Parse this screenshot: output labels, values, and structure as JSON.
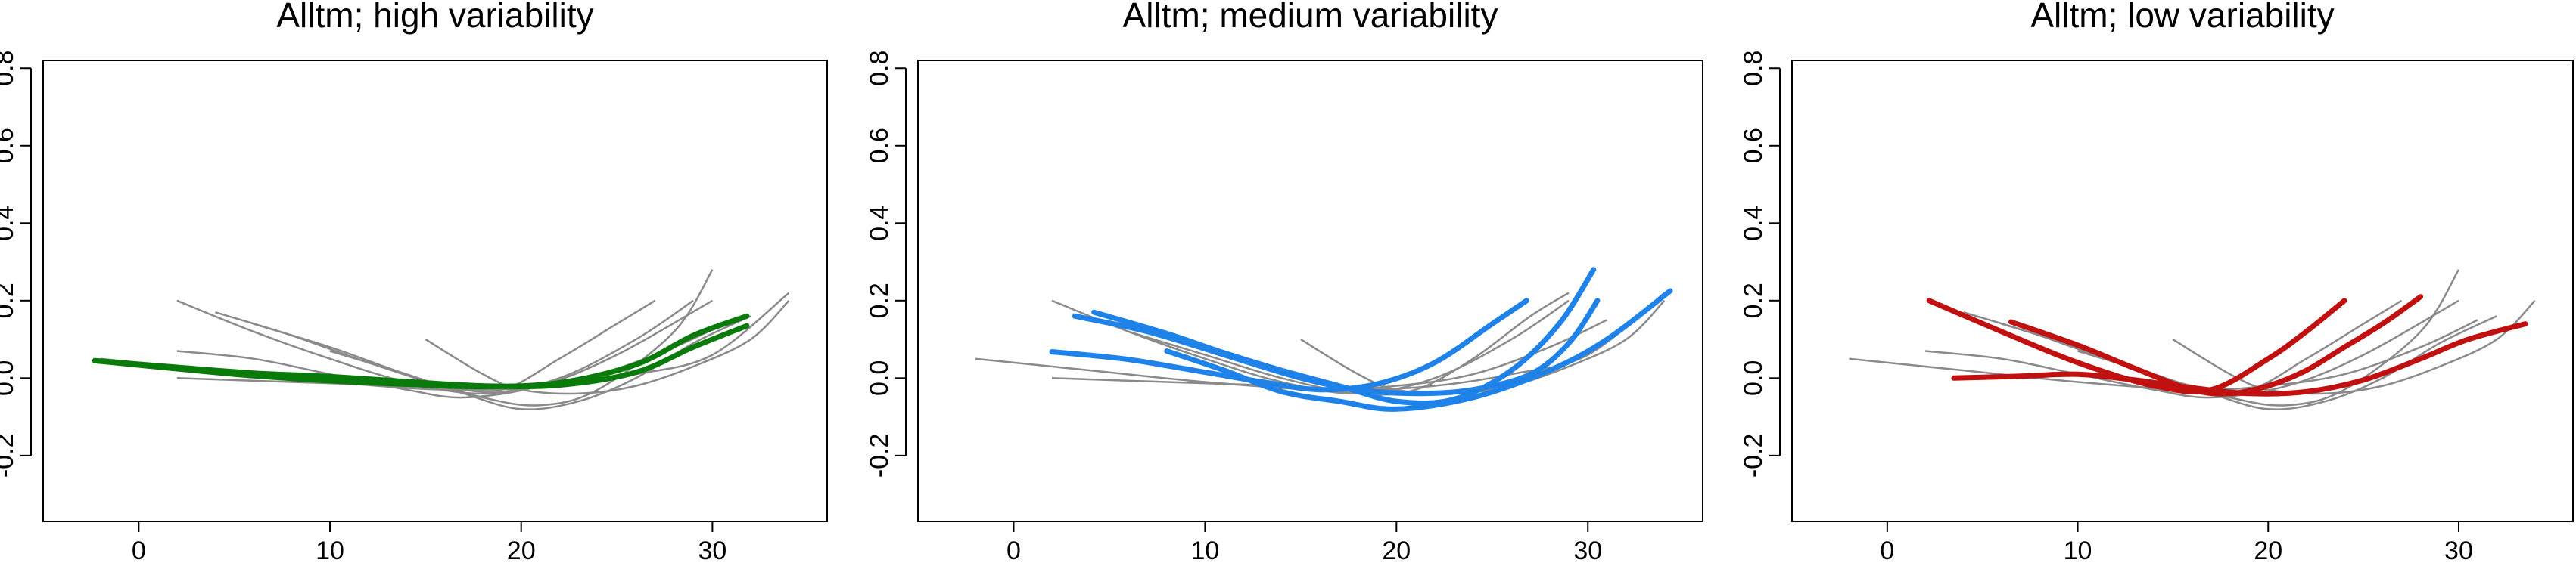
{
  "chart_data": [
    {
      "type": "line",
      "title": "Alltm; high variability",
      "xlabel": "",
      "ylabel": "",
      "xlim": [
        -5,
        36
      ],
      "ylim": [
        -0.37,
        0.82
      ],
      "xticks": [
        0,
        10,
        20,
        30
      ],
      "yticks": [
        -0.2,
        0.0,
        0.2,
        0.4,
        0.6,
        0.8
      ],
      "xtick_labels": [
        "0",
        "10",
        "20",
        "30"
      ],
      "ytick_labels": [
        "-0.2",
        "0.0",
        "0.2",
        "0.4",
        "0.6",
        "0.8"
      ],
      "highlight_color": "#0a7a0a",
      "background_color": "#8a8a8a",
      "background_series": [
        {
          "x": [
            2,
            6,
            10,
            14,
            18,
            22,
            26,
            29
          ],
          "y": [
            0.2,
            0.12,
            0.05,
            -0.01,
            -0.04,
            0.0,
            0.1,
            0.2
          ]
        },
        {
          "x": [
            4,
            8,
            12,
            16,
            19,
            22,
            25,
            27
          ],
          "y": [
            0.17,
            0.11,
            0.04,
            -0.02,
            -0.03,
            0.05,
            0.14,
            0.2
          ]
        },
        {
          "x": [
            6,
            10,
            14,
            18,
            21,
            24,
            28,
            30
          ],
          "y": [
            0.14,
            0.08,
            0.01,
            -0.05,
            -0.07,
            -0.03,
            0.12,
            0.28
          ]
        },
        {
          "x": [
            2,
            6,
            10,
            14,
            17,
            21,
            25,
            30
          ],
          "y": [
            0.07,
            0.05,
            0.01,
            -0.03,
            -0.05,
            -0.02,
            0.06,
            0.2
          ]
        },
        {
          "x": [
            10,
            14,
            17,
            20,
            23,
            26,
            29,
            32
          ],
          "y": [
            0.07,
            0.01,
            -0.04,
            -0.08,
            -0.06,
            0.0,
            0.09,
            0.16
          ]
        },
        {
          "x": [
            15,
            18,
            20,
            23,
            26,
            29,
            32,
            34
          ],
          "y": [
            0.1,
            0.01,
            -0.03,
            -0.04,
            -0.02,
            0.03,
            0.1,
            0.2
          ]
        },
        {
          "x": [
            -2,
            4,
            10,
            16,
            20,
            24,
            28,
            31
          ],
          "y": [
            0.05,
            0.02,
            -0.01,
            -0.03,
            -0.02,
            0.01,
            0.08,
            0.15
          ]
        },
        {
          "x": [
            2,
            8,
            14,
            18,
            22,
            26,
            30,
            34
          ],
          "y": [
            0.0,
            -0.01,
            -0.02,
            -0.03,
            -0.02,
            0.01,
            0.06,
            0.22
          ]
        }
      ],
      "highlight_series": [
        {
          "x": [
            -2.3,
            2,
            6,
            10,
            14,
            18,
            22,
            26,
            29,
            31.8
          ],
          "y": [
            0.045,
            0.028,
            0.013,
            0.004,
            -0.009,
            -0.02,
            -0.018,
            0.015,
            0.08,
            0.135
          ]
        },
        {
          "x": [
            -2.3,
            2,
            6,
            10,
            14,
            18,
            22,
            26,
            29,
            31.8
          ],
          "y": [
            0.045,
            0.024,
            0.006,
            -0.007,
            -0.016,
            -0.022,
            -0.012,
            0.035,
            0.11,
            0.16
          ]
        }
      ]
    },
    {
      "type": "line",
      "title": "Alltm; medium variability",
      "xlabel": "",
      "ylabel": "",
      "xlim": [
        -5,
        36
      ],
      "ylim": [
        -0.37,
        0.82
      ],
      "xticks": [
        0,
        10,
        20,
        30
      ],
      "yticks": [
        -0.2,
        0.0,
        0.2,
        0.4,
        0.6,
        0.8
      ],
      "xtick_labels": [
        "0",
        "10",
        "20",
        "30"
      ],
      "ytick_labels": [
        "-0.2",
        "0.0",
        "0.2",
        "0.4",
        "0.6",
        "0.8"
      ],
      "highlight_color": "#1f82e8",
      "background_color": "#8a8a8a",
      "background_series": [
        {
          "x": [
            2,
            6,
            10,
            14,
            18,
            22,
            26,
            29
          ],
          "y": [
            0.2,
            0.12,
            0.05,
            -0.01,
            -0.04,
            0.0,
            0.1,
            0.2
          ]
        },
        {
          "x": [
            -2,
            4,
            10,
            16,
            20,
            24,
            28,
            31
          ],
          "y": [
            0.05,
            0.02,
            -0.01,
            -0.03,
            -0.02,
            0.01,
            0.08,
            0.15
          ]
        },
        {
          "x": [
            2,
            8,
            14,
            18,
            22,
            26,
            30,
            34
          ],
          "y": [
            0.0,
            -0.01,
            -0.02,
            -0.03,
            -0.02,
            0.01,
            0.06,
            0.22
          ]
        },
        {
          "x": [
            15,
            18,
            20,
            23,
            26,
            29,
            32,
            34
          ],
          "y": [
            0.1,
            0.01,
            -0.03,
            -0.04,
            -0.02,
            0.03,
            0.1,
            0.2
          ]
        },
        {
          "x": [
            6,
            10,
            14,
            18,
            21,
            24,
            27,
            29
          ],
          "y": [
            0.12,
            0.06,
            0.0,
            -0.04,
            -0.03,
            0.05,
            0.16,
            0.22
          ]
        }
      ],
      "highlight_series": [
        {
          "x": [
            2.0,
            6,
            10,
            13,
            16,
            19,
            22,
            25,
            26.8
          ],
          "y": [
            0.068,
            0.048,
            0.015,
            -0.01,
            -0.03,
            -0.015,
            0.04,
            0.14,
            0.2
          ]
        },
        {
          "x": [
            3.2,
            7,
            11,
            15,
            18,
            21,
            24,
            27,
            29,
            30.5
          ],
          "y": [
            0.16,
            0.12,
            0.06,
            0.0,
            -0.03,
            -0.04,
            -0.03,
            0.01,
            0.09,
            0.2
          ]
        },
        {
          "x": [
            4.2,
            8,
            11,
            14,
            17,
            20,
            23,
            26,
            28.5,
            30.3
          ],
          "y": [
            0.17,
            0.115,
            0.065,
            0.02,
            -0.02,
            -0.06,
            -0.055,
            0.02,
            0.14,
            0.28
          ]
        },
        {
          "x": [
            8.0,
            11,
            14,
            17,
            20,
            24,
            28,
            31,
            34.3
          ],
          "y": [
            0.07,
            0.02,
            -0.035,
            -0.06,
            -0.08,
            -0.05,
            0.02,
            0.1,
            0.225
          ]
        }
      ]
    },
    {
      "type": "line",
      "title": "Alltm; low variability",
      "xlabel": "",
      "ylabel": "",
      "xlim": [
        -5,
        36
      ],
      "ylim": [
        -0.37,
        0.82
      ],
      "xticks": [
        0,
        10,
        20,
        30
      ],
      "yticks": [
        -0.2,
        0.0,
        0.2,
        0.4,
        0.6,
        0.8
      ],
      "xtick_labels": [
        "0",
        "10",
        "20",
        "30"
      ],
      "ytick_labels": [
        "-0.2",
        "0.0",
        "0.2",
        "0.4",
        "0.6",
        "0.8"
      ],
      "highlight_color": "#c01010",
      "background_color": "#8a8a8a",
      "background_series": [
        {
          "x": [
            -2,
            4,
            10,
            16,
            20,
            24,
            28,
            31
          ],
          "y": [
            0.05,
            0.02,
            -0.01,
            -0.03,
            -0.02,
            0.01,
            0.08,
            0.15
          ]
        },
        {
          "x": [
            2,
            6,
            10,
            14,
            17,
            21,
            25,
            30
          ],
          "y": [
            0.07,
            0.05,
            0.01,
            -0.03,
            -0.05,
            -0.02,
            0.06,
            0.2
          ]
        },
        {
          "x": [
            4,
            8,
            12,
            16,
            19,
            22,
            25,
            27
          ],
          "y": [
            0.17,
            0.11,
            0.04,
            -0.02,
            -0.03,
            0.05,
            0.14,
            0.2
          ]
        },
        {
          "x": [
            10,
            14,
            17,
            20,
            23,
            26,
            29,
            32
          ],
          "y": [
            0.07,
            0.01,
            -0.04,
            -0.08,
            -0.06,
            0.0,
            0.09,
            0.16
          ]
        },
        {
          "x": [
            15,
            18,
            20,
            23,
            26,
            29,
            32,
            34
          ],
          "y": [
            0.1,
            0.01,
            -0.03,
            -0.04,
            -0.02,
            0.03,
            0.1,
            0.2
          ]
        },
        {
          "x": [
            6,
            10,
            14,
            18,
            21,
            24,
            28,
            30
          ],
          "y": [
            0.14,
            0.08,
            0.01,
            -0.05,
            -0.07,
            -0.03,
            0.12,
            0.28
          ]
        }
      ],
      "highlight_series": [
        {
          "x": [
            2.2,
            6,
            10,
            14,
            17,
            20,
            22,
            24.0
          ],
          "y": [
            0.2,
            0.12,
            0.04,
            -0.02,
            -0.03,
            0.05,
            0.12,
            0.2
          ]
        },
        {
          "x": [
            3.5,
            7,
            10,
            13,
            16,
            19,
            22,
            25,
            28,
            30.5,
            33.5
          ],
          "y": [
            0.0,
            0.005,
            0.01,
            -0.005,
            -0.025,
            -0.04,
            -0.035,
            -0.005,
            0.05,
            0.1,
            0.14
          ]
        },
        {
          "x": [
            6.5,
            10,
            13,
            16,
            18,
            20,
            22,
            24,
            26,
            28.0
          ],
          "y": [
            0.145,
            0.085,
            0.025,
            -0.03,
            -0.04,
            -0.02,
            0.02,
            0.08,
            0.14,
            0.21
          ]
        }
      ]
    }
  ]
}
